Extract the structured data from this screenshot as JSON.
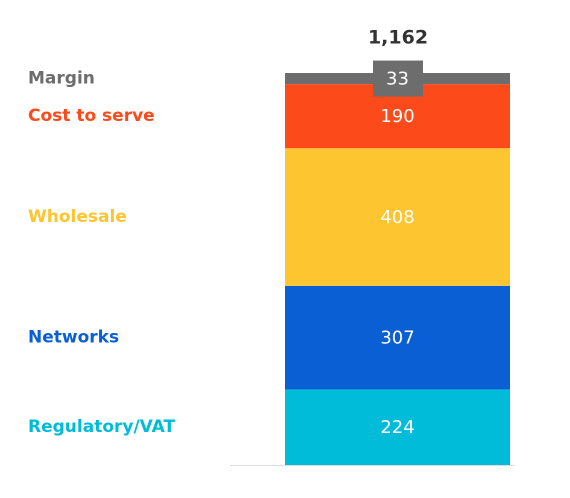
{
  "chart_data": {
    "type": "stacked-bar",
    "total_label": "1,162",
    "ylim": [
      0,
      1162
    ],
    "series": [
      {
        "name": "Regulatory/VAT",
        "color": "#00bcd9",
        "values": [
          224
        ]
      },
      {
        "name": "Networks",
        "color": "#0b5fd4",
        "values": [
          307
        ]
      },
      {
        "name": "Wholesale",
        "color": "#fdc52f",
        "values": [
          408
        ]
      },
      {
        "name": "Cost to serve",
        "color": "#fc4a1a",
        "values": [
          190
        ]
      },
      {
        "name": "Margin",
        "color": "#6d6d6d",
        "values": [
          33
        ]
      }
    ]
  }
}
